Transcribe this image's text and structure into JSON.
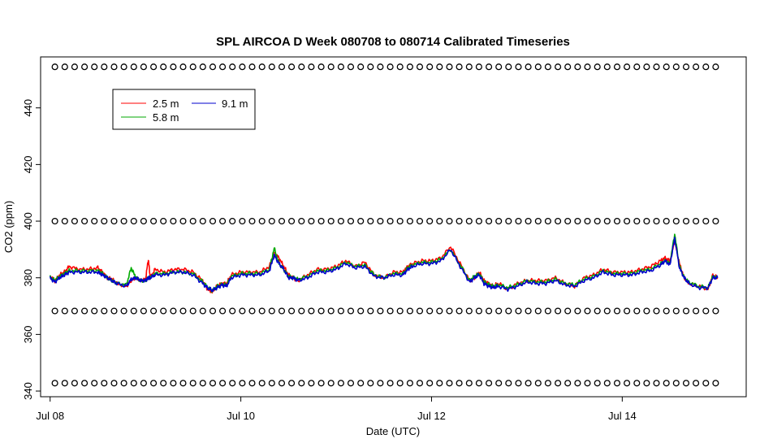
{
  "chart_data": {
    "type": "line",
    "title": "SPL AIRCOA D  Week 080708 to 080714  Calibrated Timeseries",
    "xlabel": "Date (UTC)",
    "ylabel": "CO2 (ppm)",
    "xlim": [
      -0.1,
      7.3
    ],
    "ylim": [
      338,
      458
    ],
    "y_ticks": [
      340,
      360,
      380,
      400,
      420,
      440
    ],
    "y_tick_labels": [
      "340",
      "360",
      "380",
      "400",
      "420",
      "440"
    ],
    "x_ticks": [
      0,
      2,
      4,
      6
    ],
    "x_tick_labels": [
      "Jul 08",
      "Jul 10",
      "Jul 12",
      "Jul 14"
    ],
    "legend": {
      "position": "top-left",
      "entries": [
        {
          "label": "2.5 m",
          "color": "#ff0000"
        },
        {
          "label": "5.8 m",
          "color": "#00aa00"
        },
        {
          "label": "9.1 m",
          "color": "#0000cc"
        }
      ]
    },
    "calibration_markers": {
      "symbol": "o",
      "levels": [
        454.5,
        400,
        368.3,
        342.8
      ],
      "x_start": 0.05,
      "x_end": 6.98,
      "count": 68
    },
    "series": [
      {
        "name": "2.5 m",
        "color": "#ff0000",
        "x": [
          0,
          0.05,
          0.1,
          0.15,
          0.2,
          0.3,
          0.4,
          0.5,
          0.55,
          0.6,
          0.65,
          0.7,
          0.8,
          0.85,
          0.9,
          0.95,
          1.0,
          1.03,
          1.05,
          1.1,
          1.2,
          1.3,
          1.4,
          1.5,
          1.6,
          1.65,
          1.7,
          1.75,
          1.8,
          1.85,
          1.9,
          2.0,
          2.1,
          2.2,
          2.3,
          2.35,
          2.4,
          2.45,
          2.5,
          2.55,
          2.6,
          2.7,
          2.8,
          2.9,
          3.0,
          3.1,
          3.2,
          3.3,
          3.4,
          3.5,
          3.6,
          3.7,
          3.75,
          3.8,
          3.9,
          4.0,
          4.1,
          4.2,
          4.3,
          4.4,
          4.45,
          4.5,
          4.55,
          4.6,
          4.65,
          4.7,
          4.8,
          4.9,
          5.0,
          5.1,
          5.2,
          5.3,
          5.4,
          5.5,
          5.6,
          5.7,
          5.8,
          5.9,
          6.0,
          6.1,
          6.2,
          6.3,
          6.4,
          6.45,
          6.5,
          6.55,
          6.6,
          6.65,
          6.7,
          6.8,
          6.9,
          6.95,
          7.0
        ],
        "values": [
          380.5,
          379,
          381,
          382,
          384,
          383,
          383,
          383.5,
          382,
          380,
          379.5,
          378,
          377,
          379,
          380,
          379,
          379.5,
          386.5,
          380,
          383,
          382,
          383,
          383,
          382,
          379,
          376,
          375,
          377,
          378,
          378,
          381,
          382,
          382,
          382,
          384,
          389,
          387,
          384,
          381,
          380,
          379,
          381,
          383,
          383,
          384,
          386,
          384,
          385.5,
          381,
          380,
          382,
          382,
          384,
          385,
          386,
          386,
          387,
          391,
          385,
          379,
          380,
          382,
          379,
          378,
          377,
          378,
          376,
          378,
          379,
          379,
          379,
          380,
          378,
          377,
          380,
          381,
          383,
          382,
          382,
          382,
          383,
          384,
          386,
          387,
          386,
          393,
          385,
          380,
          378,
          377,
          376,
          381,
          380
        ]
      },
      {
        "name": "5.8 m",
        "color": "#00aa00",
        "x": [
          0,
          0.05,
          0.1,
          0.15,
          0.2,
          0.3,
          0.4,
          0.5,
          0.55,
          0.6,
          0.65,
          0.7,
          0.8,
          0.85,
          0.9,
          0.95,
          1.0,
          1.03,
          1.05,
          1.1,
          1.2,
          1.3,
          1.4,
          1.5,
          1.6,
          1.65,
          1.7,
          1.75,
          1.8,
          1.85,
          1.9,
          2.0,
          2.1,
          2.2,
          2.3,
          2.35,
          2.4,
          2.45,
          2.5,
          2.55,
          2.6,
          2.7,
          2.8,
          2.9,
          3.0,
          3.1,
          3.2,
          3.3,
          3.4,
          3.5,
          3.6,
          3.7,
          3.75,
          3.8,
          3.9,
          4.0,
          4.1,
          4.2,
          4.3,
          4.4,
          4.45,
          4.5,
          4.55,
          4.6,
          4.65,
          4.7,
          4.8,
          4.9,
          5.0,
          5.1,
          5.2,
          5.3,
          5.4,
          5.5,
          5.6,
          5.7,
          5.8,
          5.9,
          6.0,
          6.1,
          6.2,
          6.3,
          6.4,
          6.45,
          6.5,
          6.55,
          6.6,
          6.65,
          6.7,
          6.8,
          6.9,
          6.95,
          7.0
        ],
        "values": [
          380.2,
          379,
          380.5,
          381.5,
          382.5,
          382.5,
          382.5,
          382.5,
          381.5,
          380,
          379,
          378,
          377.5,
          383.5,
          380,
          379,
          379,
          380,
          380,
          381.5,
          381.5,
          382,
          382,
          381.5,
          378.5,
          376.5,
          375.5,
          377,
          377.5,
          377.5,
          380.5,
          381.5,
          381.5,
          381.5,
          383,
          390.5,
          385,
          383,
          380.5,
          380,
          379.5,
          380.5,
          382.5,
          382.5,
          383.5,
          385.5,
          384,
          384.5,
          381,
          380,
          381.5,
          381.5,
          383.5,
          384.5,
          385.5,
          385.5,
          386.5,
          390,
          384.5,
          379,
          380.5,
          381.5,
          378.5,
          377.5,
          377,
          377.5,
          376.5,
          377.5,
          379,
          378.5,
          378.5,
          379.5,
          378,
          377.5,
          379.5,
          380.5,
          382.5,
          381.5,
          381.5,
          381.5,
          382.5,
          383,
          385,
          386,
          385,
          395.5,
          384,
          380,
          378.5,
          377,
          376.5,
          380.5,
          380
        ]
      },
      {
        "name": "9.1 m",
        "color": "#0000cc",
        "x": [
          0,
          0.05,
          0.1,
          0.15,
          0.2,
          0.3,
          0.4,
          0.5,
          0.55,
          0.6,
          0.65,
          0.7,
          0.8,
          0.85,
          0.9,
          0.95,
          1.0,
          1.03,
          1.05,
          1.1,
          1.2,
          1.3,
          1.4,
          1.5,
          1.6,
          1.65,
          1.7,
          1.75,
          1.8,
          1.85,
          1.9,
          2.0,
          2.1,
          2.2,
          2.3,
          2.35,
          2.4,
          2.45,
          2.5,
          2.55,
          2.6,
          2.7,
          2.8,
          2.9,
          3.0,
          3.1,
          3.2,
          3.3,
          3.4,
          3.5,
          3.6,
          3.7,
          3.75,
          3.8,
          3.9,
          4.0,
          4.1,
          4.2,
          4.3,
          4.4,
          4.45,
          4.5,
          4.55,
          4.6,
          4.65,
          4.7,
          4.8,
          4.9,
          5.0,
          5.1,
          5.2,
          5.3,
          5.4,
          5.5,
          5.6,
          5.7,
          5.8,
          5.9,
          6.0,
          6.1,
          6.2,
          6.3,
          6.4,
          6.45,
          6.5,
          6.55,
          6.6,
          6.65,
          6.7,
          6.8,
          6.9,
          6.95,
          7.0
        ],
        "values": [
          380,
          378.5,
          380,
          381,
          382,
          382,
          382,
          382,
          381,
          380,
          379,
          378,
          377,
          379.5,
          380,
          379,
          379,
          380,
          380,
          381,
          381,
          382,
          382,
          381,
          378,
          376.5,
          375.5,
          376.5,
          377.5,
          377,
          380,
          381,
          381,
          381,
          382.5,
          388,
          385,
          383,
          380,
          380,
          379,
          380,
          382,
          382,
          383,
          385,
          383.5,
          384,
          380.5,
          380,
          381,
          381,
          383,
          384,
          385,
          385,
          386,
          390,
          384,
          378.5,
          380,
          381,
          378,
          377,
          376.5,
          377,
          376,
          377,
          378.5,
          378,
          378,
          379,
          377.5,
          377,
          379,
          380,
          382,
          381,
          381,
          381,
          382,
          382.5,
          384.5,
          386,
          384.5,
          394,
          383.5,
          380,
          378,
          376.5,
          376.5,
          380,
          380
        ]
      }
    ]
  }
}
